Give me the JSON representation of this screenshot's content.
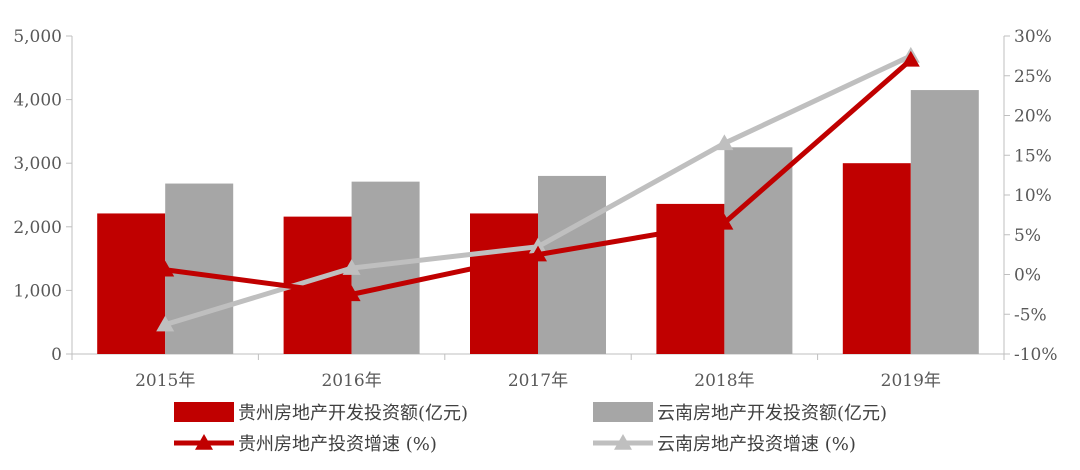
{
  "chart_data": {
    "type": "bar",
    "categories": [
      "2015年",
      "2016年",
      "2017年",
      "2018年",
      "2019年"
    ],
    "y_left": {
      "ticks": [
        "0",
        "1,000",
        "2,000",
        "3,000",
        "4,000",
        "5,000"
      ],
      "lim": [
        0,
        5000
      ]
    },
    "y_right": {
      "ticks": [
        "-10%",
        "-5%",
        "0%",
        "5%",
        "10%",
        "15%",
        "20%",
        "25%",
        "30%"
      ],
      "lim": [
        -10,
        30
      ]
    },
    "bar_series": [
      {
        "name": "贵州房地产开发投资额(亿元)",
        "color": "#C00000",
        "values": [
          2210,
          2160,
          2210,
          2360,
          3000
        ]
      },
      {
        "name": "云南房地产开发投资额(亿元)",
        "color": "#A6A6A6",
        "values": [
          2680,
          2710,
          2800,
          3250,
          4150
        ]
      }
    ],
    "line_series": [
      {
        "name": "贵州房地产投资增速 (%)",
        "color": "#C00000",
        "values": [
          0.6,
          -2.5,
          2.5,
          6.5,
          27.0
        ]
      },
      {
        "name": "云南房地产投资增速 (%)",
        "color": "#BFBFBF",
        "values": [
          -6.3,
          0.8,
          3.5,
          16.5,
          27.5
        ]
      }
    ],
    "grid": false,
    "legend_position": "bottom"
  }
}
